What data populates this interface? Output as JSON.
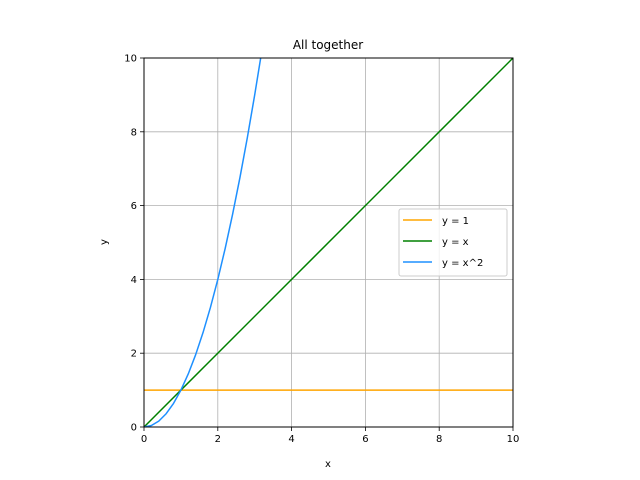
{
  "chart_data": {
    "type": "line",
    "title": "All together",
    "xlabel": "x",
    "ylabel": "y",
    "xlim": [
      0,
      10
    ],
    "ylim": [
      0,
      10
    ],
    "xticks": [
      0,
      2,
      4,
      6,
      8,
      10
    ],
    "yticks": [
      0,
      2,
      4,
      6,
      8,
      10
    ],
    "grid": true,
    "legend_position": "center-right",
    "series": [
      {
        "name": "y = 1",
        "color": "#ffa500",
        "x": [
          0,
          10
        ],
        "y": [
          1,
          1
        ]
      },
      {
        "name": "y = x",
        "color": "#008000",
        "x": [
          0,
          10
        ],
        "y": [
          0,
          10
        ]
      },
      {
        "name": "y = x^2",
        "color": "#1e90ff",
        "x": [
          0,
          0.2,
          0.4,
          0.6,
          0.8,
          1.0,
          1.2,
          1.4,
          1.6,
          1.8,
          2.0,
          2.2,
          2.4,
          2.6,
          2.8,
          3.0,
          3.162
        ],
        "y": [
          0,
          0.04,
          0.16,
          0.36,
          0.64,
          1.0,
          1.44,
          1.96,
          2.56,
          3.24,
          4.0,
          4.84,
          5.76,
          6.76,
          7.84,
          9.0,
          10.0
        ]
      }
    ]
  }
}
